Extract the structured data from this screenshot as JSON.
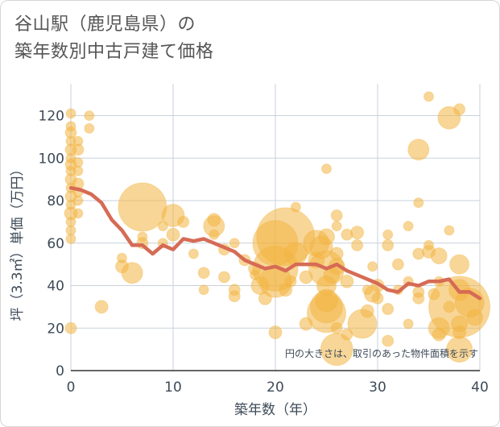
{
  "title_lines": [
    "谷山駅（鹿児島県）の",
    "築年数別中古戸建て価格"
  ],
  "colors": {
    "bubble": "#f2b441",
    "line": "#d66b55",
    "grid": "#c8d2dc",
    "text": "#3d4a57"
  },
  "chart_data": {
    "type": "scatter",
    "title": "谷山駅（鹿児島県）の築年数別中古戸建て価格",
    "xlabel": "築年数（年）",
    "ylabel": "坪（3.3㎡）単価（万円）",
    "xlim": [
      0,
      40
    ],
    "ylim": [
      0,
      135
    ],
    "xticks": [
      0,
      10,
      20,
      30,
      40
    ],
    "yticks": [
      0,
      20,
      40,
      60,
      80,
      100,
      120
    ],
    "note": "円の大きさは、取引のあった物件面積を示す",
    "bubbles": [
      {
        "x": 0,
        "y": 121,
        "s": 6
      },
      {
        "x": 0,
        "y": 115,
        "s": 6
      },
      {
        "x": 0,
        "y": 112,
        "s": 7
      },
      {
        "x": 0,
        "y": 108,
        "s": 6
      },
      {
        "x": 0,
        "y": 104,
        "s": 7
      },
      {
        "x": 0,
        "y": 100,
        "s": 6
      },
      {
        "x": 0,
        "y": 97,
        "s": 7
      },
      {
        "x": 0,
        "y": 94,
        "s": 6
      },
      {
        "x": 0,
        "y": 90,
        "s": 7
      },
      {
        "x": 0,
        "y": 86,
        "s": 6
      },
      {
        "x": 0,
        "y": 82,
        "s": 7
      },
      {
        "x": 0,
        "y": 78,
        "s": 6
      },
      {
        "x": 0,
        "y": 74,
        "s": 8
      },
      {
        "x": 0,
        "y": 70,
        "s": 6
      },
      {
        "x": 0,
        "y": 66,
        "s": 6
      },
      {
        "x": 0,
        "y": 62,
        "s": 6
      },
      {
        "x": 0,
        "y": 20,
        "s": 7
      },
      {
        "x": 0.7,
        "y": 108,
        "s": 6
      },
      {
        "x": 0.7,
        "y": 104,
        "s": 7
      },
      {
        "x": 0.7,
        "y": 98,
        "s": 6
      },
      {
        "x": 0.7,
        "y": 94,
        "s": 6
      },
      {
        "x": 0.7,
        "y": 88,
        "s": 7
      },
      {
        "x": 0.7,
        "y": 84,
        "s": 6
      },
      {
        "x": 0.7,
        "y": 80,
        "s": 6
      },
      {
        "x": 0.7,
        "y": 74,
        "s": 6
      },
      {
        "x": 1.8,
        "y": 120,
        "s": 6
      },
      {
        "x": 1.8,
        "y": 114,
        "s": 6
      },
      {
        "x": 3,
        "y": 30,
        "s": 8
      },
      {
        "x": 5,
        "y": 53,
        "s": 6
      },
      {
        "x": 5,
        "y": 49,
        "s": 8
      },
      {
        "x": 6,
        "y": 46,
        "s": 13
      },
      {
        "x": 7,
        "y": 77,
        "s": 30
      },
      {
        "x": 7,
        "y": 63,
        "s": 6
      },
      {
        "x": 7,
        "y": 60,
        "s": 7
      },
      {
        "x": 9,
        "y": 68,
        "s": 6
      },
      {
        "x": 9,
        "y": 60,
        "s": 6
      },
      {
        "x": 10,
        "y": 73,
        "s": 14
      },
      {
        "x": 10,
        "y": 64,
        "s": 8
      },
      {
        "x": 11,
        "y": 70,
        "s": 7
      },
      {
        "x": 12,
        "y": 55,
        "s": 6
      },
      {
        "x": 13,
        "y": 46,
        "s": 7
      },
      {
        "x": 13,
        "y": 38,
        "s": 6
      },
      {
        "x": 14,
        "y": 71,
        "s": 8
      },
      {
        "x": 14,
        "y": 68,
        "s": 13
      },
      {
        "x": 14,
        "y": 64,
        "s": 6
      },
      {
        "x": 15,
        "y": 57,
        "s": 7
      },
      {
        "x": 15,
        "y": 44,
        "s": 7
      },
      {
        "x": 16,
        "y": 60,
        "s": 6
      },
      {
        "x": 16,
        "y": 38,
        "s": 7
      },
      {
        "x": 16,
        "y": 35,
        "s": 7
      },
      {
        "x": 17,
        "y": 52,
        "s": 7
      },
      {
        "x": 18,
        "y": 48,
        "s": 8
      },
      {
        "x": 18,
        "y": 45,
        "s": 6
      },
      {
        "x": 18.5,
        "y": 40,
        "s": 11
      },
      {
        "x": 19,
        "y": 34,
        "s": 8
      },
      {
        "x": 20,
        "y": 60,
        "s": 28
      },
      {
        "x": 20,
        "y": 48,
        "s": 28
      },
      {
        "x": 20,
        "y": 42,
        "s": 20
      },
      {
        "x": 20,
        "y": 18,
        "s": 8
      },
      {
        "x": 21,
        "y": 63,
        "s": 36
      },
      {
        "x": 21,
        "y": 38,
        "s": 8
      },
      {
        "x": 21.5,
        "y": 42,
        "s": 7
      },
      {
        "x": 22,
        "y": 77,
        "s": 6
      },
      {
        "x": 22,
        "y": 55,
        "s": 14
      },
      {
        "x": 23,
        "y": 44,
        "s": 8
      },
      {
        "x": 23,
        "y": 22,
        "s": 8
      },
      {
        "x": 24,
        "y": 60,
        "s": 16
      },
      {
        "x": 24,
        "y": 52,
        "s": 10
      },
      {
        "x": 24.5,
        "y": 58,
        "s": 14
      },
      {
        "x": 25,
        "y": 95,
        "s": 6
      },
      {
        "x": 25,
        "y": 63,
        "s": 10
      },
      {
        "x": 25,
        "y": 48,
        "s": 22
      },
      {
        "x": 25,
        "y": 40,
        "s": 12
      },
      {
        "x": 25,
        "y": 33,
        "s": 14
      },
      {
        "x": 25,
        "y": 30,
        "s": 20
      },
      {
        "x": 25,
        "y": 27,
        "s": 24
      },
      {
        "x": 25.5,
        "y": 45,
        "s": 10
      },
      {
        "x": 26,
        "y": 73,
        "s": 7
      },
      {
        "x": 26,
        "y": 68,
        "s": 6
      },
      {
        "x": 26,
        "y": 55,
        "s": 8
      },
      {
        "x": 26,
        "y": 49,
        "s": 10
      },
      {
        "x": 26,
        "y": 20,
        "s": 7
      },
      {
        "x": 26,
        "y": 10,
        "s": 20
      },
      {
        "x": 27,
        "y": 64,
        "s": 7
      },
      {
        "x": 27,
        "y": 42,
        "s": 8
      },
      {
        "x": 27,
        "y": 17,
        "s": 7
      },
      {
        "x": 28,
        "y": 65,
        "s": 8
      },
      {
        "x": 28,
        "y": 59,
        "s": 7
      },
      {
        "x": 28.5,
        "y": 22,
        "s": 18
      },
      {
        "x": 29,
        "y": 38,
        "s": 6
      },
      {
        "x": 29,
        "y": 28,
        "s": 8
      },
      {
        "x": 29.5,
        "y": 36,
        "s": 10
      },
      {
        "x": 29.5,
        "y": 49,
        "s": 6
      },
      {
        "x": 30,
        "y": 40,
        "s": 8
      },
      {
        "x": 30,
        "y": 34,
        "s": 7
      },
      {
        "x": 31,
        "y": 64,
        "s": 6
      },
      {
        "x": 31,
        "y": 59,
        "s": 7
      },
      {
        "x": 31,
        "y": 29,
        "s": 7
      },
      {
        "x": 31,
        "y": 14,
        "s": 7
      },
      {
        "x": 32,
        "y": 50,
        "s": 7
      },
      {
        "x": 32,
        "y": 38,
        "s": 6
      },
      {
        "x": 33,
        "y": 68,
        "s": 6
      },
      {
        "x": 33,
        "y": 42,
        "s": 6
      },
      {
        "x": 33,
        "y": 22,
        "s": 6
      },
      {
        "x": 34,
        "y": 104,
        "s": 13
      },
      {
        "x": 34,
        "y": 79,
        "s": 6
      },
      {
        "x": 34,
        "y": 55,
        "s": 7
      },
      {
        "x": 34,
        "y": 37,
        "s": 7
      },
      {
        "x": 34,
        "y": 34,
        "s": 7
      },
      {
        "x": 35,
        "y": 129,
        "s": 6
      },
      {
        "x": 35,
        "y": 59,
        "s": 6
      },
      {
        "x": 35,
        "y": 56,
        "s": 8
      },
      {
        "x": 35.5,
        "y": 36,
        "s": 7
      },
      {
        "x": 36,
        "y": 54,
        "s": 10
      },
      {
        "x": 36,
        "y": 42,
        "s": 6
      },
      {
        "x": 36,
        "y": 20,
        "s": 13
      },
      {
        "x": 36,
        "y": 17,
        "s": 8
      },
      {
        "x": 37,
        "y": 119,
        "s": 14
      },
      {
        "x": 37,
        "y": 66,
        "s": 6
      },
      {
        "x": 37,
        "y": 30,
        "s": 7
      },
      {
        "x": 38,
        "y": 123,
        "s": 7
      },
      {
        "x": 38,
        "y": 50,
        "s": 12
      },
      {
        "x": 38,
        "y": 38,
        "s": 13
      },
      {
        "x": 38,
        "y": 30,
        "s": 38
      },
      {
        "x": 38,
        "y": 22,
        "s": 10
      },
      {
        "x": 38,
        "y": 18,
        "s": 8
      },
      {
        "x": 38,
        "y": 10,
        "s": 16
      },
      {
        "x": 39,
        "y": 32,
        "s": 18
      },
      {
        "x": 39.5,
        "y": 25,
        "s": 10
      }
    ],
    "trend_line": {
      "x": [
        0,
        1,
        2,
        3,
        4,
        5,
        6,
        7,
        8,
        9,
        10,
        11,
        12,
        13,
        14,
        15,
        16,
        17,
        18,
        19,
        20,
        21,
        22,
        23,
        24,
        25,
        26,
        27,
        28,
        29,
        30,
        31,
        32,
        33,
        34,
        35,
        36,
        37,
        38,
        39,
        40
      ],
      "y": [
        86,
        85,
        83,
        79,
        71,
        66,
        59,
        59,
        55,
        59,
        57,
        62,
        61,
        62,
        60,
        58,
        56,
        52,
        50,
        48,
        49,
        47,
        50,
        50,
        50,
        48,
        50,
        47,
        45,
        43,
        41,
        38,
        37,
        41,
        40,
        42,
        42,
        43,
        37,
        37,
        34
      ]
    }
  }
}
